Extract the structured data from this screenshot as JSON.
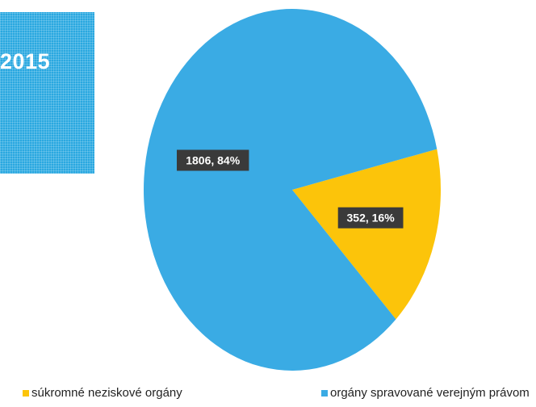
{
  "badge": {
    "year": "2015"
  },
  "chart_data": {
    "type": "pie",
    "title": "",
    "categories": [
      "súkromné neziskové orgány",
      "orgány spravované verejným právom"
    ],
    "values": [
      352,
      1806
    ],
    "percent": [
      16,
      84
    ],
    "data_labels": [
      "352, 16%",
      "1806, 84%"
    ],
    "colors": [
      "#fcc40a",
      "#3aabe4"
    ],
    "legend_position": "bottom"
  }
}
